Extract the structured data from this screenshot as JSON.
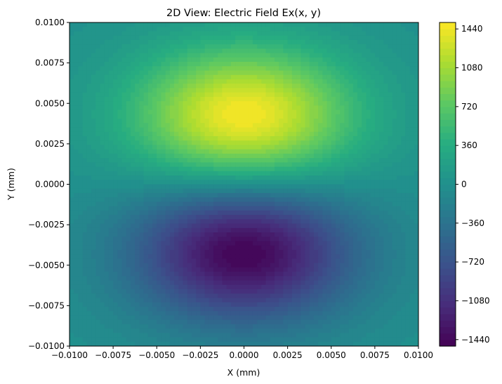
{
  "chart_data": {
    "type": "heatmap",
    "subtype": "filled-contour",
    "title": "2D View: Electric Field Ex(x, y)",
    "xlabel": "X (mm)",
    "ylabel": "Y (mm)",
    "xlim": [
      -0.01,
      0.01
    ],
    "ylim": [
      -0.01,
      0.01
    ],
    "xticks": [
      -0.01,
      -0.0075,
      -0.005,
      -0.0025,
      0.0,
      0.0025,
      0.005,
      0.0075,
      0.01
    ],
    "xtick_labels": [
      "−0.0100",
      "−0.0075",
      "−0.0050",
      "−0.0025",
      "0.0000",
      "0.0025",
      "0.0050",
      "0.0075",
      "0.0100"
    ],
    "yticks": [
      -0.01,
      -0.0075,
      -0.005,
      -0.0025,
      0.0,
      0.0025,
      0.005,
      0.0075,
      0.01
    ],
    "ytick_labels": [
      "−0.0100",
      "−0.0075",
      "−0.0050",
      "−0.0025",
      "0.0000",
      "0.0025",
      "0.0050",
      "0.0075",
      "0.0100"
    ],
    "colormap": "viridis",
    "colorbar": {
      "range": [
        -1500,
        1500
      ],
      "ticks": [
        -1440,
        -1080,
        -720,
        -360,
        0,
        360,
        720,
        1080,
        1440
      ],
      "tick_labels": [
        "−1440",
        "−1080",
        "−720",
        "−360",
        "0",
        "360",
        "720",
        "1080",
        "1440"
      ]
    },
    "field_features": [
      {
        "kind": "maximum",
        "x": 0.0,
        "y": 0.0042,
        "value": 1490
      },
      {
        "kind": "minimum",
        "x": 0.0,
        "y": -0.0042,
        "value": -1490
      }
    ],
    "grid": false
  }
}
